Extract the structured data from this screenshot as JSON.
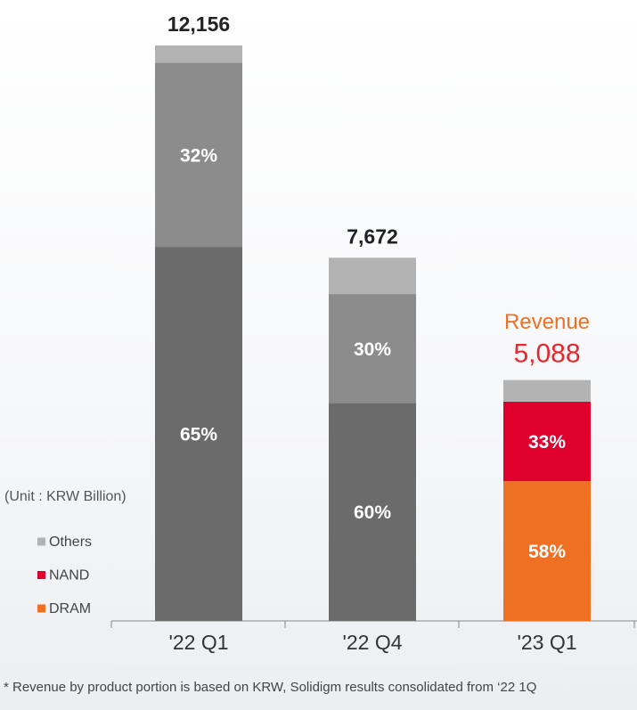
{
  "chart_data": {
    "type": "stacked_bar_percent",
    "categories": [
      "'22 Q1",
      "'22 Q4",
      "'23 Q1"
    ],
    "totals": [
      12156,
      7672,
      5088
    ],
    "total_labels": [
      "12,156",
      "7,672",
      "5,088"
    ],
    "series": [
      {
        "name": "DRAM",
        "color": "#f07023",
        "bar_colors": [
          "#6b6b6b",
          "#6b6b6b",
          "#f07023"
        ],
        "values": [
          65,
          60,
          58
        ],
        "value_labels": [
          "65%",
          "60%",
          "58%"
        ]
      },
      {
        "name": "NAND",
        "color": "#e0002d",
        "bar_colors": [
          "#8c8c8c",
          "#8c8c8c",
          "#e0002d"
        ],
        "values": [
          32,
          30,
          33
        ],
        "value_labels": [
          "32%",
          "30%",
          "33%"
        ]
      },
      {
        "name": "Others",
        "color": "#b3b3b3",
        "bar_colors": [
          "#b3b3b3",
          "#b3b3b3",
          "#b3b3b3"
        ],
        "values": [
          3,
          10,
          9
        ]
      }
    ],
    "annotation": "Revenue",
    "unit": "(Unit : KRW Billion)",
    "footnote": "* Revenue by product portion is based on KRW, Solidigm results consolidated from ‘22 1Q"
  }
}
